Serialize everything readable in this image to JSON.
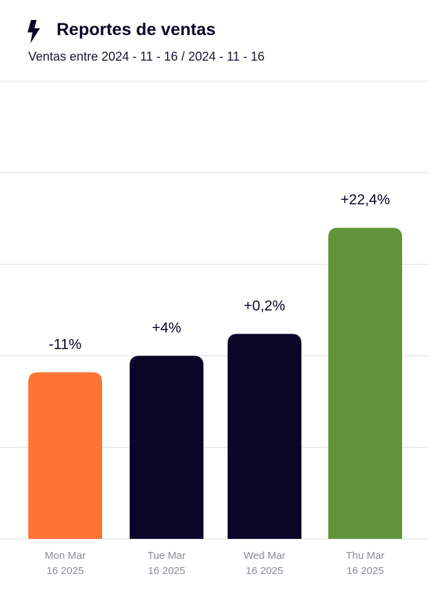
{
  "header": {
    "icon": "bolt-icon",
    "title": "Reportes de ventas",
    "subtitle": "Ventas entre 2024 - 11 - 16 / 2024 - 11 - 16"
  },
  "chart_data": {
    "type": "bar",
    "categories": [
      [
        "Mon Mar",
        "16 2025"
      ],
      [
        "Tue Mar",
        "16 2025"
      ],
      [
        "Wed Mar",
        "16 2025"
      ],
      [
        "Thu Mar",
        "16 2025"
      ]
    ],
    "values": [
      0.91,
      1.0,
      1.12,
      1.7
    ],
    "data_labels": [
      "-11%",
      "+4%",
      "+0,2%",
      "+22,4%"
    ],
    "colors": [
      "#ff7433",
      "#0b0628",
      "#0b0628",
      "#62943c"
    ],
    "ylim": [
      0,
      2.5
    ],
    "grid": true,
    "gridline_count": 5,
    "title": "",
    "xlabel": "",
    "ylabel": ""
  }
}
